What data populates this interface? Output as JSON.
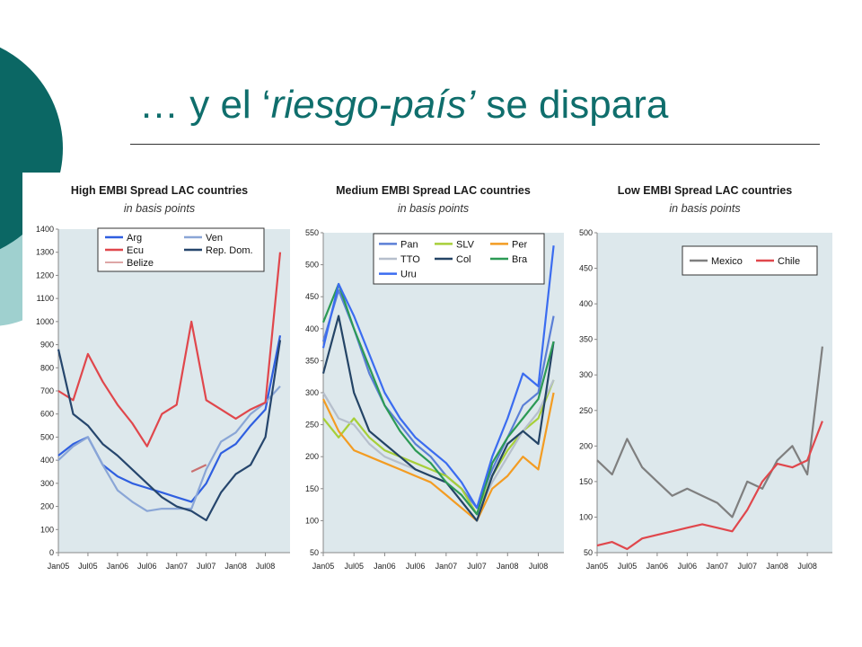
{
  "slide": {
    "title_prefix": "… y el ‘",
    "title_italic": "riesgo-país’",
    "title_suffix": " se dispara",
    "accent_color": "#0f6e6c"
  },
  "chart_data": [
    {
      "type": "line",
      "title": "High EMBI Spread LAC countries",
      "subtitle": "in basis points",
      "ylim": [
        0,
        1400
      ],
      "yticks": [
        0,
        100,
        200,
        300,
        400,
        500,
        600,
        700,
        800,
        900,
        1000,
        1100,
        1200,
        1300,
        1400
      ],
      "xticks": [
        "Jan05",
        "Jul05",
        "Jan06",
        "Jul06",
        "Jan07",
        "Jul07",
        "Jan08",
        "Jul08"
      ],
      "x": [
        "2005-01",
        "2005-04",
        "2005-07",
        "2005-10",
        "2006-01",
        "2006-04",
        "2006-07",
        "2006-10",
        "2007-01",
        "2007-04",
        "2007-07",
        "2007-10",
        "2008-01",
        "2008-04",
        "2008-07",
        "2008-10"
      ],
      "legend": "top-right",
      "grid": false,
      "series": [
        {
          "name": "Arg",
          "color": "#2f5fe0",
          "values": [
            420,
            470,
            500,
            380,
            330,
            300,
            280,
            260,
            240,
            220,
            300,
            430,
            470,
            550,
            620,
            940
          ]
        },
        {
          "name": "Ven",
          "color": "#8aa6d6",
          "values": [
            400,
            460,
            500,
            380,
            270,
            220,
            180,
            190,
            190,
            190,
            360,
            480,
            520,
            600,
            650,
            720
          ]
        },
        {
          "name": "Ecu",
          "color": "#e0474c",
          "values": [
            700,
            660,
            860,
            740,
            640,
            560,
            460,
            600,
            640,
            1000,
            660,
            620,
            580,
            620,
            650,
            1300
          ]
        },
        {
          "name": "Rep. Dom.",
          "color": "#26466d",
          "values": [
            880,
            600,
            550,
            470,
            420,
            360,
            300,
            240,
            200,
            180,
            140,
            260,
            340,
            380,
            500,
            920
          ]
        },
        {
          "name": "Belize",
          "color": "#c97070",
          "values": [
            null,
            null,
            null,
            null,
            null,
            null,
            null,
            null,
            null,
            350,
            380,
            null,
            null,
            null,
            null,
            null
          ]
        }
      ]
    },
    {
      "type": "line",
      "title": "Medium EMBI Spread LAC countries",
      "subtitle": "in basis points",
      "ylim": [
        50,
        550
      ],
      "yticks": [
        50,
        100,
        150,
        200,
        250,
        300,
        350,
        400,
        450,
        500,
        550
      ],
      "xticks": [
        "Jan05",
        "Jul05",
        "Jan06",
        "Jul06",
        "Jan07",
        "Jul07",
        "Jan08",
        "Jul08"
      ],
      "x": [
        "2005-01",
        "2005-04",
        "2005-07",
        "2005-10",
        "2006-01",
        "2006-04",
        "2006-07",
        "2006-10",
        "2007-01",
        "2007-04",
        "2007-07",
        "2007-10",
        "2008-01",
        "2008-04",
        "2008-07",
        "2008-10"
      ],
      "legend": "top-right",
      "grid": false,
      "series": [
        {
          "name": "Pan",
          "color": "#5b7fd6",
          "values": [
            380,
            460,
            400,
            330,
            280,
            250,
            220,
            200,
            170,
            150,
            120,
            180,
            230,
            280,
            300,
            420
          ]
        },
        {
          "name": "SLV",
          "color": "#a7cf39",
          "values": [
            260,
            230,
            260,
            230,
            210,
            200,
            190,
            180,
            170,
            150,
            110,
            170,
            210,
            240,
            260,
            320
          ]
        },
        {
          "name": "Per",
          "color": "#f39c22",
          "values": [
            290,
            240,
            210,
            200,
            190,
            180,
            170,
            160,
            140,
            120,
            100,
            150,
            170,
            200,
            180,
            300
          ]
        },
        {
          "name": "TTO",
          "color": "#b6bfcc",
          "values": [
            300,
            260,
            250,
            220,
            200,
            190,
            180,
            170,
            160,
            140,
            110,
            160,
            200,
            240,
            270,
            320
          ]
        },
        {
          "name": "Col",
          "color": "#244466",
          "values": [
            330,
            420,
            300,
            240,
            220,
            200,
            180,
            170,
            160,
            130,
            100,
            170,
            220,
            240,
            220,
            380
          ]
        },
        {
          "name": "Bra",
          "color": "#2c9a55",
          "values": [
            410,
            470,
            400,
            340,
            280,
            240,
            210,
            190,
            160,
            140,
            110,
            190,
            230,
            260,
            290,
            380
          ]
        },
        {
          "name": "Uru",
          "color": "#3b6cf0",
          "values": [
            370,
            470,
            420,
            360,
            300,
            260,
            230,
            210,
            190,
            160,
            120,
            200,
            260,
            330,
            310,
            530
          ]
        }
      ]
    },
    {
      "type": "line",
      "title": "Low EMBI Spread LAC countries",
      "subtitle": "in basis points",
      "ylim": [
        50,
        500
      ],
      "yticks": [
        50,
        100,
        150,
        200,
        250,
        300,
        350,
        400,
        450,
        500
      ],
      "xticks": [
        "Jan05",
        "Jul05",
        "Jan06",
        "Jul06",
        "Jan07",
        "Jul07",
        "Jan08",
        "Jul08"
      ],
      "x": [
        "2005-01",
        "2005-04",
        "2005-07",
        "2005-10",
        "2006-01",
        "2006-04",
        "2006-07",
        "2006-10",
        "2007-01",
        "2007-04",
        "2007-07",
        "2007-10",
        "2008-01",
        "2008-04",
        "2008-07",
        "2008-10"
      ],
      "legend": "top-right",
      "grid": false,
      "series": [
        {
          "name": "Mexico",
          "color": "#7f7f7f",
          "values": [
            180,
            160,
            210,
            170,
            150,
            130,
            140,
            130,
            120,
            100,
            150,
            140,
            180,
            200,
            160,
            340
          ]
        },
        {
          "name": "Chile",
          "color": "#e0474c",
          "values": [
            60,
            65,
            55,
            70,
            75,
            80,
            85,
            90,
            85,
            80,
            110,
            150,
            175,
            170,
            180,
            235
          ]
        }
      ]
    }
  ]
}
